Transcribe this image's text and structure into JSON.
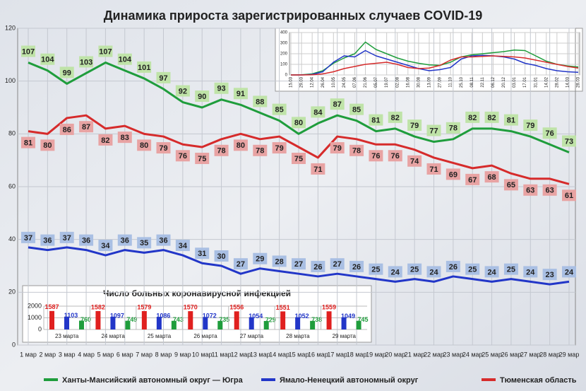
{
  "chart_data": [
    {
      "type": "line",
      "title": "Динамика прироста зарегистрированных случаев COVID-19",
      "categories": [
        "1 мар",
        "2 мар",
        "3 мар",
        "4 мар",
        "5 мар",
        "6 мар",
        "7 мар",
        "8 мар",
        "9 мар",
        "10 мар",
        "11 мар",
        "12 мар",
        "13 мар",
        "14 мар",
        "15 мар",
        "16 мар",
        "17 мар",
        "18 мар",
        "19 мар",
        "20 мар",
        "21 мар",
        "22 мар",
        "23 мар",
        "24 мар",
        "25 мар",
        "26 мар",
        "27 мар",
        "28 мар",
        "29 мар"
      ],
      "series": [
        {
          "name": "Ханты-Мансийский автономный округ — Югра",
          "color": "#1f9d3c",
          "label_fill": "#bfe3a8",
          "values": [
            107,
            104,
            99,
            103,
            107,
            104,
            101,
            97,
            92,
            90,
            93,
            91,
            88,
            85,
            80,
            84,
            87,
            85,
            81,
            82,
            79,
            77,
            78,
            82,
            82,
            81,
            79,
            76,
            73
          ]
        },
        {
          "name": "Ямало-Ненецкий автономный округ",
          "color": "#2236c8",
          "label_fill": "#a9bfe3",
          "values": [
            37,
            36,
            37,
            36,
            34,
            36,
            35,
            36,
            34,
            31,
            30,
            27,
            29,
            28,
            27,
            26,
            27,
            26,
            25,
            24,
            25,
            24,
            26,
            25,
            24,
            25,
            24,
            23,
            24
          ]
        },
        {
          "name": "Тюменская область",
          "color": "#d62b2b",
          "label_fill": "#e8a3a3",
          "values": [
            81,
            80,
            86,
            87,
            82,
            83,
            80,
            79,
            76,
            75,
            78,
            80,
            78,
            79,
            75,
            71,
            79,
            78,
            76,
            76,
            74,
            71,
            69,
            67,
            68,
            65,
            63,
            63,
            61
          ]
        }
      ],
      "ylim": [
        0,
        120
      ],
      "yticks": [
        0,
        20,
        40,
        60,
        80,
        100,
        120
      ],
      "grid": true
    },
    {
      "type": "line",
      "categories": [
        "15.03",
        "29.03",
        "12.04",
        "26.04",
        "10.05",
        "24.05",
        "07.06",
        "21.06",
        "05.07",
        "19.07",
        "02.08",
        "16.08",
        "30.08",
        "13.09",
        "27.09",
        "11.10",
        "25.10",
        "08.11",
        "22.11",
        "06.12",
        "20.12",
        "03.01",
        "17.01",
        "31.01",
        "14.02",
        "28.02",
        "14.03",
        "28.03"
      ],
      "series": [
        {
          "color": "#1f9d3c",
          "values": [
            0,
            2,
            10,
            40,
            110,
            160,
            200,
            310,
            240,
            200,
            160,
            130,
            110,
            95,
            90,
            120,
            170,
            190,
            200,
            210,
            220,
            235,
            230,
            180,
            130,
            100,
            85,
            75
          ]
        },
        {
          "color": "#2236c8",
          "values": [
            0,
            0,
            5,
            30,
            120,
            180,
            170,
            230,
            180,
            150,
            120,
            90,
            60,
            40,
            50,
            70,
            150,
            180,
            185,
            180,
            170,
            150,
            110,
            90,
            60,
            40,
            30,
            25
          ]
        },
        {
          "color": "#d62b2b",
          "values": [
            0,
            0,
            2,
            10,
            30,
            60,
            80,
            100,
            110,
            120,
            100,
            70,
            60,
            65,
            90,
            140,
            170,
            170,
            175,
            180,
            175,
            170,
            160,
            140,
            120,
            100,
            80,
            65
          ]
        }
      ],
      "ylim": [
        0,
        400
      ],
      "yticks": [
        0,
        100,
        200,
        300,
        400
      ],
      "grid": true
    },
    {
      "type": "bar",
      "title": "Число больных коронавирусной инфекцией",
      "categories": [
        "23 марта",
        "24 марта",
        "25 марта",
        "26 марта",
        "27 марта",
        "28 марта",
        "29 марта"
      ],
      "series": [
        {
          "color": "#e0201f",
          "values": [
            1587,
            1582,
            1579,
            1570,
            1556,
            1551,
            1559
          ]
        },
        {
          "color": "#2236c8",
          "values": [
            1103,
            1097,
            1086,
            1072,
            1054,
            1052,
            1049
          ]
        },
        {
          "color": "#1f9d3c",
          "values": [
            760,
            749,
            743,
            735,
            729,
            738,
            745
          ]
        }
      ],
      "ylim": [
        0,
        2000
      ],
      "yticks": [
        0,
        1000,
        2000
      ],
      "grid": true
    }
  ]
}
